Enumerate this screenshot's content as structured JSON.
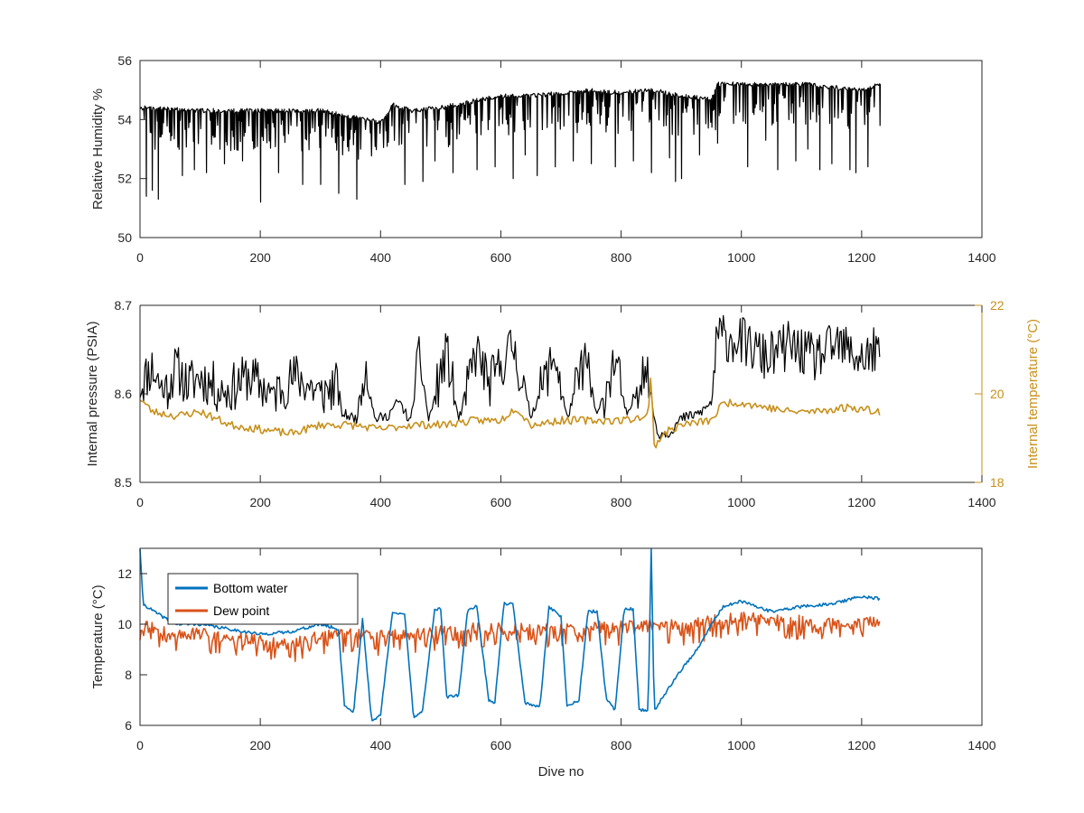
{
  "chart_data": [
    {
      "type": "line",
      "ylabel": "Relative Humidity %",
      "xlabel": "",
      "xlim": [
        0,
        1400
      ],
      "ylim": [
        50,
        56
      ],
      "xticks": [
        "0",
        "200",
        "400",
        "600",
        "800",
        "1000",
        "1200",
        "1400"
      ],
      "yticks": [
        "50",
        "52",
        "54",
        "56"
      ],
      "grid": false,
      "series": [
        {
          "color": "#000000",
          "baseline": [
            [
              0,
              54.4
            ],
            [
              100,
              54.3
            ],
            [
              200,
              54.3
            ],
            [
              300,
              54.3
            ],
            [
              350,
              54.1
            ],
            [
              400,
              53.9
            ],
            [
              420,
              54.5
            ],
            [
              450,
              54.3
            ],
            [
              500,
              54.4
            ],
            [
              550,
              54.6
            ],
            [
              600,
              54.8
            ],
            [
              650,
              54.8
            ],
            [
              700,
              54.9
            ],
            [
              750,
              55.0
            ],
            [
              800,
              54.9
            ],
            [
              850,
              55.0
            ],
            [
              900,
              54.8
            ],
            [
              950,
              54.7
            ],
            [
              960,
              55.2
            ],
            [
              1000,
              55.2
            ],
            [
              1100,
              55.2
            ],
            [
              1200,
              55.0
            ],
            [
              1230,
              55.2
            ]
          ],
          "spikes": [
            [
              10,
              51.4
            ],
            [
              20,
              51.6
            ],
            [
              30,
              51.3
            ],
            [
              45,
              51.4
            ],
            [
              55,
              51.4
            ],
            [
              70,
              52.1
            ],
            [
              90,
              52.3
            ],
            [
              110,
              52.2
            ],
            [
              125,
              51.5
            ],
            [
              140,
              52.5
            ],
            [
              155,
              52.0
            ],
            [
              170,
              52.6
            ],
            [
              185,
              51.8
            ],
            [
              200,
              51.2
            ],
            [
              215,
              52.6
            ],
            [
              230,
              52.2
            ],
            [
              245,
              51.6
            ],
            [
              255,
              52.4
            ],
            [
              270,
              51.8
            ],
            [
              285,
              52.6
            ],
            [
              300,
              51.8
            ],
            [
              315,
              52.0
            ],
            [
              330,
              51.5
            ],
            [
              345,
              52.3
            ],
            [
              360,
              51.3
            ],
            [
              375,
              51.5
            ],
            [
              385,
              51.2
            ],
            [
              395,
              51.1
            ],
            [
              405,
              52.6
            ],
            [
              440,
              51.8
            ],
            [
              455,
              52.2
            ],
            [
              470,
              51.9
            ],
            [
              490,
              52.6
            ],
            [
              505,
              51.7
            ],
            [
              520,
              52.2
            ],
            [
              545,
              52.6
            ],
            [
              560,
              52.3
            ],
            [
              590,
              52.4
            ],
            [
              620,
              52.0
            ],
            [
              640,
              52.8
            ],
            [
              660,
              52.1
            ],
            [
              690,
              52.4
            ],
            [
              720,
              52.6
            ],
            [
              750,
              52.5
            ],
            [
              790,
              52.4
            ],
            [
              820,
              52.6
            ],
            [
              850,
              52.2
            ],
            [
              880,
              52.7
            ],
            [
              890,
              51.9
            ],
            [
              900,
              52.0
            ],
            [
              930,
              52.8
            ],
            [
              960,
              53.2
            ],
            [
              985,
              52.1
            ],
            [
              1010,
              52.4
            ],
            [
              1040,
              53.3
            ],
            [
              1060,
              52.3
            ],
            [
              1090,
              52.6
            ],
            [
              1110,
              53.0
            ],
            [
              1130,
              52.3
            ],
            [
              1150,
              52.5
            ],
            [
              1180,
              52.3
            ],
            [
              1190,
              52.2
            ],
            [
              1210,
              52.4
            ],
            [
              1230,
              53.8
            ]
          ]
        }
      ]
    },
    {
      "type": "line",
      "ylabel": "Internal pressure (PSIA)",
      "y2label": "Internal temperature (°C)",
      "xlabel": "",
      "xlim": [
        0,
        1400
      ],
      "ylim": [
        8.5,
        8.7
      ],
      "y2lim": [
        18,
        22
      ],
      "xticks": [
        "0",
        "200",
        "400",
        "600",
        "800",
        "1000",
        "1200",
        "1400"
      ],
      "yticks": [
        "8.5",
        "8.6",
        "8.7"
      ],
      "y2ticks": [
        "18",
        "20",
        "22"
      ],
      "grid": false,
      "series": [
        {
          "axis": "left",
          "color": "#000000",
          "points": [
            [
              0,
              8.61
            ],
            [
              20,
              8.63
            ],
            [
              40,
              8.6
            ],
            [
              60,
              8.63
            ],
            [
              80,
              8.61
            ],
            [
              100,
              8.62
            ],
            [
              140,
              8.6
            ],
            [
              180,
              8.62
            ],
            [
              220,
              8.6
            ],
            [
              260,
              8.62
            ],
            [
              300,
              8.6
            ],
            [
              330,
              8.61
            ],
            [
              335,
              8.578
            ],
            [
              360,
              8.572
            ],
            [
              375,
              8.638
            ],
            [
              390,
              8.572
            ],
            [
              410,
              8.574
            ],
            [
              430,
              8.592
            ],
            [
              450,
              8.568
            ],
            [
              465,
              8.645
            ],
            [
              480,
              8.57
            ],
            [
              510,
              8.648
            ],
            [
              530,
              8.57
            ],
            [
              560,
              8.65
            ],
            [
              580,
              8.61
            ],
            [
              620,
              8.655
            ],
            [
              650,
              8.575
            ],
            [
              690,
              8.645
            ],
            [
              710,
              8.572
            ],
            [
              740,
              8.64
            ],
            [
              760,
              8.574
            ],
            [
              790,
              8.64
            ],
            [
              810,
              8.572
            ],
            [
              840,
              8.638
            ],
            [
              860,
              8.555
            ],
            [
              880,
              8.556
            ],
            [
              900,
              8.572
            ],
            [
              930,
              8.578
            ],
            [
              950,
              8.59
            ],
            [
              960,
              8.665
            ],
            [
              1000,
              8.66
            ],
            [
              1040,
              8.64
            ],
            [
              1080,
              8.655
            ],
            [
              1120,
              8.64
            ],
            [
              1160,
              8.655
            ],
            [
              1200,
              8.64
            ],
            [
              1230,
              8.65
            ]
          ]
        },
        {
          "axis": "right",
          "color": "#C8901A",
          "points": [
            [
              0,
              19.9
            ],
            [
              20,
              19.6
            ],
            [
              60,
              19.5
            ],
            [
              100,
              19.6
            ],
            [
              150,
              19.3
            ],
            [
              200,
              19.2
            ],
            [
              250,
              19.1
            ],
            [
              300,
              19.3
            ],
            [
              350,
              19.3
            ],
            [
              400,
              19.2
            ],
            [
              450,
              19.3
            ],
            [
              500,
              19.3
            ],
            [
              560,
              19.4
            ],
            [
              600,
              19.4
            ],
            [
              625,
              19.7
            ],
            [
              650,
              19.3
            ],
            [
              700,
              19.4
            ],
            [
              750,
              19.4
            ],
            [
              800,
              19.4
            ],
            [
              845,
              19.5
            ],
            [
              850,
              20.5
            ],
            [
              855,
              18.8
            ],
            [
              870,
              19.1
            ],
            [
              900,
              19.3
            ],
            [
              950,
              19.4
            ],
            [
              970,
              19.8
            ],
            [
              1000,
              19.8
            ],
            [
              1040,
              19.7
            ],
            [
              1080,
              19.6
            ],
            [
              1120,
              19.6
            ],
            [
              1180,
              19.7
            ],
            [
              1230,
              19.6
            ]
          ]
        }
      ]
    },
    {
      "type": "line",
      "ylabel": "Temperature (°C)",
      "xlabel": "Dive no",
      "xlim": [
        0,
        1400
      ],
      "ylim": [
        6,
        13
      ],
      "xticks": [
        "0",
        "200",
        "400",
        "600",
        "800",
        "1000",
        "1200",
        "1400"
      ],
      "yticks": [
        "6",
        "8",
        "10",
        "12"
      ],
      "grid": false,
      "legend": {
        "placement": "top-left",
        "entries": [
          {
            "label": "Bottom water",
            "color": "#0072BD"
          },
          {
            "label": "Dew point",
            "color": "#D95319"
          }
        ]
      },
      "series": [
        {
          "name": "Bottom water",
          "color": "#0072BD",
          "points": [
            [
              0,
              13.0
            ],
            [
              5,
              10.8
            ],
            [
              30,
              10.4
            ],
            [
              60,
              10.0
            ],
            [
              100,
              10.0
            ],
            [
              150,
              9.8
            ],
            [
              200,
              9.6
            ],
            [
              250,
              9.7
            ],
            [
              300,
              10.0
            ],
            [
              330,
              9.8
            ],
            [
              340,
              6.8
            ],
            [
              355,
              6.5
            ],
            [
              370,
              10.2
            ],
            [
              385,
              6.2
            ],
            [
              400,
              6.4
            ],
            [
              420,
              10.5
            ],
            [
              440,
              10.4
            ],
            [
              455,
              6.3
            ],
            [
              470,
              6.6
            ],
            [
              490,
              10.6
            ],
            [
              500,
              10.6
            ],
            [
              510,
              7.1
            ],
            [
              530,
              7.2
            ],
            [
              545,
              10.6
            ],
            [
              560,
              10.7
            ],
            [
              580,
              7.0
            ],
            [
              590,
              6.9
            ],
            [
              605,
              10.8
            ],
            [
              620,
              10.8
            ],
            [
              640,
              6.9
            ],
            [
              665,
              6.7
            ],
            [
              680,
              10.7
            ],
            [
              700,
              10.3
            ],
            [
              710,
              6.8
            ],
            [
              730,
              7.0
            ],
            [
              745,
              10.5
            ],
            [
              760,
              10.5
            ],
            [
              775,
              7.1
            ],
            [
              790,
              6.6
            ],
            [
              805,
              10.6
            ],
            [
              820,
              10.6
            ],
            [
              830,
              6.6
            ],
            [
              845,
              6.6
            ],
            [
              850,
              13.0
            ],
            [
              855,
              6.6
            ],
            [
              880,
              7.5
            ],
            [
              900,
              8.2
            ],
            [
              930,
              9.1
            ],
            [
              950,
              10.0
            ],
            [
              970,
              10.7
            ],
            [
              1000,
              10.9
            ],
            [
              1050,
              10.5
            ],
            [
              1100,
              10.7
            ],
            [
              1150,
              10.8
            ],
            [
              1200,
              11.1
            ],
            [
              1230,
              11.0
            ]
          ]
        },
        {
          "name": "Dew point",
          "color": "#D95319",
          "points": [
            [
              0,
              10.0
            ],
            [
              50,
              9.6
            ],
            [
              100,
              9.6
            ],
            [
              150,
              9.5
            ],
            [
              200,
              9.3
            ],
            [
              250,
              9.2
            ],
            [
              300,
              9.5
            ],
            [
              350,
              9.6
            ],
            [
              400,
              9.5
            ],
            [
              450,
              9.6
            ],
            [
              500,
              9.7
            ],
            [
              550,
              9.8
            ],
            [
              600,
              9.8
            ],
            [
              650,
              9.8
            ],
            [
              700,
              9.8
            ],
            [
              750,
              9.9
            ],
            [
              800,
              9.9
            ],
            [
              850,
              10.0
            ],
            [
              900,
              9.9
            ],
            [
              950,
              10.1
            ],
            [
              1000,
              10.3
            ],
            [
              1050,
              10.2
            ],
            [
              1100,
              10.1
            ],
            [
              1150,
              10.0
            ],
            [
              1200,
              10.0
            ],
            [
              1230,
              10.1
            ]
          ]
        }
      ]
    }
  ]
}
